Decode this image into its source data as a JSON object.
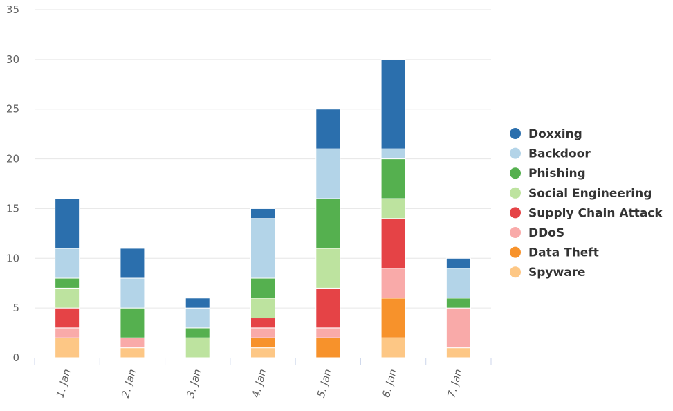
{
  "chart_data": {
    "type": "bar",
    "stacked": true,
    "title": "",
    "xlabel": "",
    "ylabel": "",
    "categories": [
      "1. Jan",
      "2. Jan",
      "3. Jan",
      "4. Jan",
      "5. Jan",
      "6. Jan",
      "7. Jan"
    ],
    "ylim": [
      0,
      35
    ],
    "yticks": [
      0,
      5,
      10,
      15,
      20,
      25,
      30,
      35
    ],
    "grid": true,
    "legend_position": "right",
    "series": [
      {
        "name": "Spyware",
        "color": "#fdc785",
        "values": [
          2,
          1,
          0,
          1,
          0,
          2,
          1
        ]
      },
      {
        "name": "Data Theft",
        "color": "#f7922b",
        "values": [
          0,
          0,
          0,
          1,
          2,
          4,
          0
        ]
      },
      {
        "name": "DDoS",
        "color": "#f9aaa9",
        "values": [
          1,
          1,
          0,
          1,
          1,
          3,
          4
        ]
      },
      {
        "name": "Supply Chain Attack",
        "color": "#e54346",
        "values": [
          2,
          0,
          0,
          1,
          4,
          5,
          0
        ]
      },
      {
        "name": "Social Engineering",
        "color": "#bde39f",
        "values": [
          2,
          0,
          2,
          2,
          4,
          2,
          0
        ]
      },
      {
        "name": "Phishing",
        "color": "#55b04f",
        "values": [
          1,
          3,
          1,
          2,
          5,
          4,
          1
        ]
      },
      {
        "name": "Backdoor",
        "color": "#b3d4e8",
        "values": [
          3,
          3,
          2,
          6,
          5,
          1,
          3
        ]
      },
      {
        "name": "Doxxing",
        "color": "#2b6fad",
        "values": [
          5,
          3,
          1,
          1,
          4,
          9,
          1
        ]
      }
    ],
    "legend_order": [
      "Doxxing",
      "Backdoor",
      "Phishing",
      "Social Engineering",
      "Supply Chain Attack",
      "DDoS",
      "Data Theft",
      "Spyware"
    ]
  }
}
